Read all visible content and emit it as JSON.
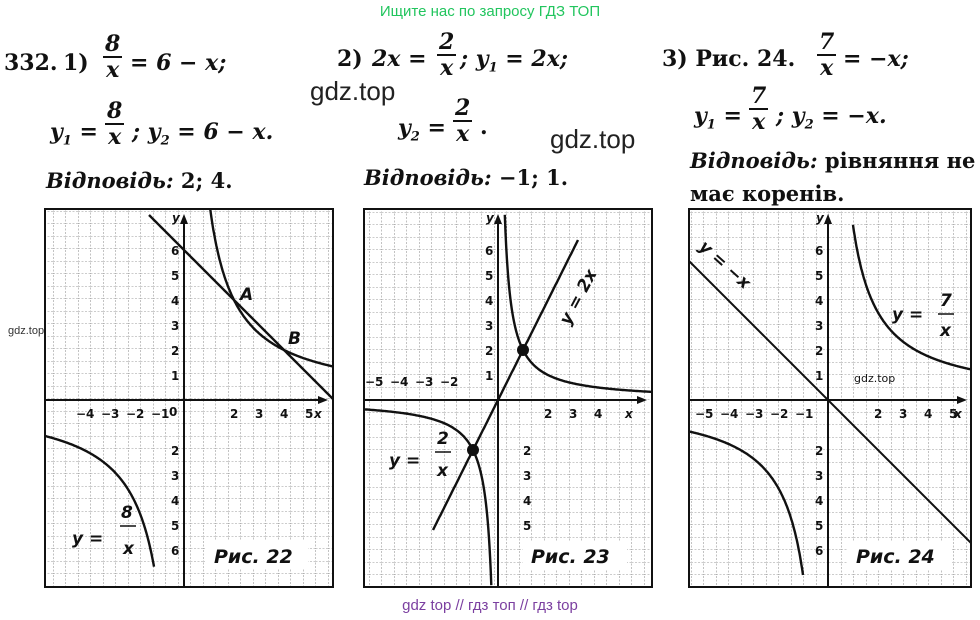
{
  "banner": "Ищите нас по запросу ГДЗ ТОП",
  "watermarks": {
    "a": "gdz.top",
    "b": "gdz.top",
    "side": "gdz.top",
    "fig3": "gdz.top"
  },
  "footer": "gdz top  //  гдз топ  //  гдз top",
  "problem_number": "332.",
  "p1": {
    "label": "1)",
    "num": "8",
    "den": "x",
    "rhs": "= 6 − x;",
    "y1": "y",
    "y1_sub": "1",
    "eq": "=",
    "y1_num": "8",
    "y1_den": "x",
    "y2": "; y",
    "y2_sub": "2",
    "y2_rhs": "= 6 − x.",
    "answer_label": "Відповідь:",
    "answer": "2; 4."
  },
  "p2": {
    "label": "2)",
    "lhs": "2x =",
    "num": "2",
    "den": "x",
    "y1": "; y",
    "y1_sub": "1",
    "y1_rhs": "= 2x;",
    "y2": "y",
    "y2_sub": "2",
    "eq": "=",
    "y2_num": "2",
    "y2_den": "x",
    "dot": ".",
    "answer_label": "Відповідь:",
    "answer": "−1; 1."
  },
  "p3": {
    "label": "3) Рис. 24.",
    "num": "7",
    "den": "x",
    "rhs": "= −x;",
    "y1": "y",
    "y1_sub": "1",
    "eq": "=",
    "y1_num": "7",
    "y1_den": "x",
    "y2": "; y",
    "y2_sub": "2",
    "y2_rhs": "= −x.",
    "answer_label": "Відповідь:",
    "answer_line1": "рівняння не",
    "answer_line2": "має коренів."
  },
  "fig1": {
    "caption": "Рис. 22",
    "label_A": "A",
    "label_B": "B",
    "curve_label": "y =",
    "curve_num": "8",
    "curve_den": "x",
    "axis_x": "x",
    "axis_y": "y",
    "xticks": [
      "−4",
      "−3",
      "−2",
      "−1",
      "0",
      "2",
      "3",
      "4",
      "5"
    ],
    "yticks_pos": [
      "1",
      "2",
      "3",
      "4",
      "5",
      "6"
    ],
    "yticks_neg": [
      "2",
      "3",
      "4",
      "5",
      "6"
    ]
  },
  "fig2": {
    "caption": "Рис. 23",
    "line_label": "y = 2x",
    "curve_label": "y =",
    "curve_num": "2",
    "curve_den": "x",
    "axis_x": "x",
    "axis_y": "y",
    "xticks_neg": [
      "−5",
      "−4",
      "−3",
      "−2"
    ],
    "xticks_pos": [
      "2",
      "3",
      "4"
    ],
    "yticks_pos": [
      "1",
      "2",
      "3",
      "4",
      "5",
      "6"
    ],
    "yticks_neg": [
      "2",
      "3",
      "4",
      "5"
    ]
  },
  "fig3": {
    "caption": "Рис. 24",
    "line_label": "y = −x",
    "curve_label": "y =",
    "curve_num": "7",
    "curve_den": "x",
    "axis_x": "x",
    "axis_y": "y",
    "xticks_neg": [
      "−5",
      "−4",
      "−3",
      "−2",
      "−1"
    ],
    "xticks_pos": [
      "2",
      "3",
      "4",
      "5"
    ],
    "yticks_pos": [
      "1",
      "2",
      "3",
      "4",
      "5",
      "6"
    ],
    "yticks_neg": [
      "2",
      "3",
      "4",
      "5",
      "6"
    ]
  }
}
